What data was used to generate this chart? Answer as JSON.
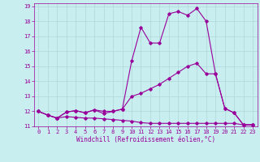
{
  "title": "",
  "xlabel": "Windchill (Refroidissement éolien,°C)",
  "ylabel": "",
  "bg_color": "#c8eef0",
  "grid_color": "#b0d8d8",
  "line_color": "#990099",
  "xlim": [
    -0.5,
    23.5
  ],
  "ylim": [
    11,
    19.2
  ],
  "yticks": [
    11,
    12,
    13,
    14,
    15,
    16,
    17,
    18,
    19
  ],
  "xticks": [
    0,
    1,
    2,
    3,
    4,
    5,
    6,
    7,
    8,
    9,
    10,
    11,
    12,
    13,
    14,
    15,
    16,
    17,
    18,
    19,
    20,
    21,
    22,
    23
  ],
  "line1_x": [
    0,
    1,
    2,
    3,
    4,
    5,
    6,
    7,
    8,
    9,
    10,
    11,
    12,
    13,
    14,
    15,
    16,
    17,
    18,
    19,
    20,
    21,
    22,
    23
  ],
  "line1_y": [
    12.0,
    11.75,
    11.55,
    11.65,
    11.6,
    11.55,
    11.55,
    11.5,
    11.45,
    11.4,
    11.35,
    11.25,
    11.2,
    11.2,
    11.2,
    11.2,
    11.2,
    11.2,
    11.2,
    11.2,
    11.2,
    11.2,
    11.1,
    11.1
  ],
  "line2_x": [
    0,
    1,
    2,
    3,
    4,
    5,
    6,
    7,
    8,
    9,
    10,
    11,
    12,
    13,
    14,
    15,
    16,
    17,
    18,
    19,
    20,
    21,
    22,
    23
  ],
  "line2_y": [
    12.0,
    11.75,
    11.55,
    11.95,
    12.05,
    11.9,
    12.1,
    11.85,
    12.0,
    12.15,
    13.0,
    13.2,
    13.5,
    13.8,
    14.2,
    14.6,
    15.0,
    15.2,
    14.5,
    14.5,
    12.2,
    11.9,
    11.1,
    11.1
  ],
  "line3_x": [
    0,
    1,
    2,
    3,
    4,
    5,
    6,
    7,
    8,
    9,
    10,
    11,
    12,
    13,
    14,
    15,
    16,
    17,
    18,
    19,
    20,
    21,
    22,
    23
  ],
  "line3_y": [
    12.0,
    11.75,
    11.55,
    11.95,
    12.05,
    11.9,
    12.1,
    12.0,
    12.0,
    12.15,
    15.35,
    17.6,
    16.55,
    16.55,
    18.5,
    18.65,
    18.4,
    18.85,
    18.0,
    14.5,
    12.2,
    11.9,
    11.1,
    11.1
  ],
  "marker": "D",
  "markersize": 1.8,
  "linewidth": 0.8,
  "label_fontsize": 5.5,
  "tick_fontsize": 5.0
}
